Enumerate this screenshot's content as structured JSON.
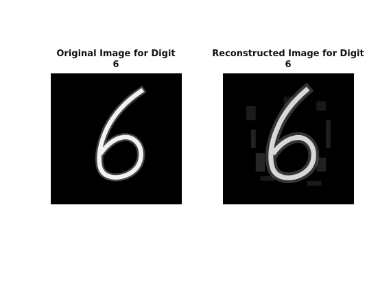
{
  "figure": {
    "panels": [
      {
        "title_line1": "Original Image for Digit",
        "title_line2": "6",
        "image": "handwritten digit 6, grayscale"
      },
      {
        "title_line1": "Reconstructed Image for Digit",
        "title_line2": "6",
        "image": "blurred reconstruction of digit 6, grayscale"
      }
    ],
    "colors": {
      "background": "#000000",
      "stroke": "#f0f0f0"
    }
  }
}
